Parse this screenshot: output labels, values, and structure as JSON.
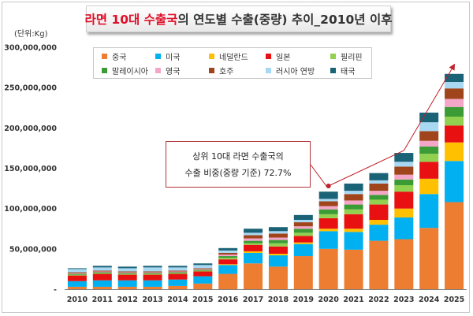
{
  "title": {
    "highlight": "라면 10대 수출국",
    "rest": "의 연도별 수출(중량) 추이_2010년 이후"
  },
  "unit_label": "(단위:Kg)",
  "annotation": {
    "line1": "상위 10대 라면 수출국의",
    "line2": "수출 비중(중량 기준) 72.7%"
  },
  "colors": {
    "trend_line": "#c0202a",
    "axis": "#7f7f7f"
  },
  "chart_data": {
    "type": "bar",
    "stacked": true,
    "ylim": [
      0,
      300000000
    ],
    "yticks": [
      0,
      50000000,
      100000000,
      150000000,
      200000000,
      250000000,
      300000000
    ],
    "ytick_labels": [
      "-",
      "50,000,000",
      "100,000,000",
      "150,000,000",
      "200,000,000",
      "250,000,000",
      "300,000,000"
    ],
    "grid": false,
    "legend_position": "top",
    "categories": [
      "2010",
      "2011",
      "2012",
      "2013",
      "2014",
      "2015",
      "2016",
      "2017",
      "2018",
      "2019",
      "2020",
      "2021",
      "2022",
      "2023",
      "2024",
      "2025"
    ],
    "series": [
      {
        "name": "중국",
        "color": "#ed7d31",
        "values": [
          3000000,
          3000000,
          3000000,
          3000000,
          4000000,
          7000000,
          19000000,
          32000000,
          28000000,
          41000000,
          50000000,
          49000000,
          60000000,
          62000000,
          76000000,
          108000000
        ]
      },
      {
        "name": "미국",
        "color": "#00b0f0",
        "values": [
          7000000,
          8000000,
          8000000,
          8000000,
          8000000,
          9000000,
          11000000,
          13000000,
          14000000,
          15000000,
          22000000,
          22000000,
          20000000,
          27000000,
          42000000,
          51000000
        ]
      },
      {
        "name": "네덜란드",
        "color": "#ffc000",
        "values": [
          0,
          0,
          0,
          0,
          0,
          0,
          1000000,
          2000000,
          2000000,
          2000000,
          3000000,
          4000000,
          6000000,
          11000000,
          19000000,
          23000000
        ]
      },
      {
        "name": "일본",
        "color": "#e81010",
        "values": [
          7000000,
          8000000,
          7000000,
          7000000,
          7000000,
          6000000,
          6000000,
          8000000,
          9000000,
          8000000,
          13000000,
          18000000,
          19000000,
          21000000,
          21000000,
          21000000
        ]
      },
      {
        "name": "필리핀",
        "color": "#92d050",
        "values": [
          1000000,
          1000000,
          1000000,
          1000000,
          1000000,
          1000000,
          2000000,
          2000000,
          4000000,
          4000000,
          5000000,
          6000000,
          6000000,
          8000000,
          10000000,
          11000000
        ]
      },
      {
        "name": "말레이시아",
        "color": "#3b9b35",
        "values": [
          1000000,
          1000000,
          1000000,
          1000000,
          1000000,
          1000000,
          2000000,
          3000000,
          4000000,
          5000000,
          6000000,
          6000000,
          6000000,
          7000000,
          9000000,
          12000000
        ]
      },
      {
        "name": "영국",
        "color": "#f4a6c8",
        "values": [
          1000000,
          1000000,
          1000000,
          1000000,
          1000000,
          1000000,
          2000000,
          3000000,
          3000000,
          3000000,
          4000000,
          5000000,
          5000000,
          6000000,
          7000000,
          10000000
        ]
      },
      {
        "name": "호주",
        "color": "#a0451b",
        "values": [
          1000000,
          1000000,
          1000000,
          1000000,
          1000000,
          1000000,
          2000000,
          4000000,
          5000000,
          5000000,
          6000000,
          8000000,
          9000000,
          10000000,
          12000000,
          13000000
        ]
      },
      {
        "name": "러시아 연방",
        "color": "#a9d8f2",
        "values": [
          4000000,
          4000000,
          4000000,
          5000000,
          4000000,
          4000000,
          3000000,
          3000000,
          3000000,
          3000000,
          3000000,
          4000000,
          4000000,
          6000000,
          11000000,
          8000000
        ]
      },
      {
        "name": "태국",
        "color": "#1a6276",
        "values": [
          1000000,
          2000000,
          2000000,
          2000000,
          2000000,
          2000000,
          3000000,
          5000000,
          5000000,
          6000000,
          9000000,
          9000000,
          9000000,
          11000000,
          12000000,
          10000000
        ]
      }
    ],
    "trend_line": {
      "points": [
        {
          "x": "2020",
          "y": 128000000
        },
        {
          "x": "2023",
          "y": 172000000
        },
        {
          "x": "2025",
          "y": 278000000
        }
      ]
    }
  }
}
